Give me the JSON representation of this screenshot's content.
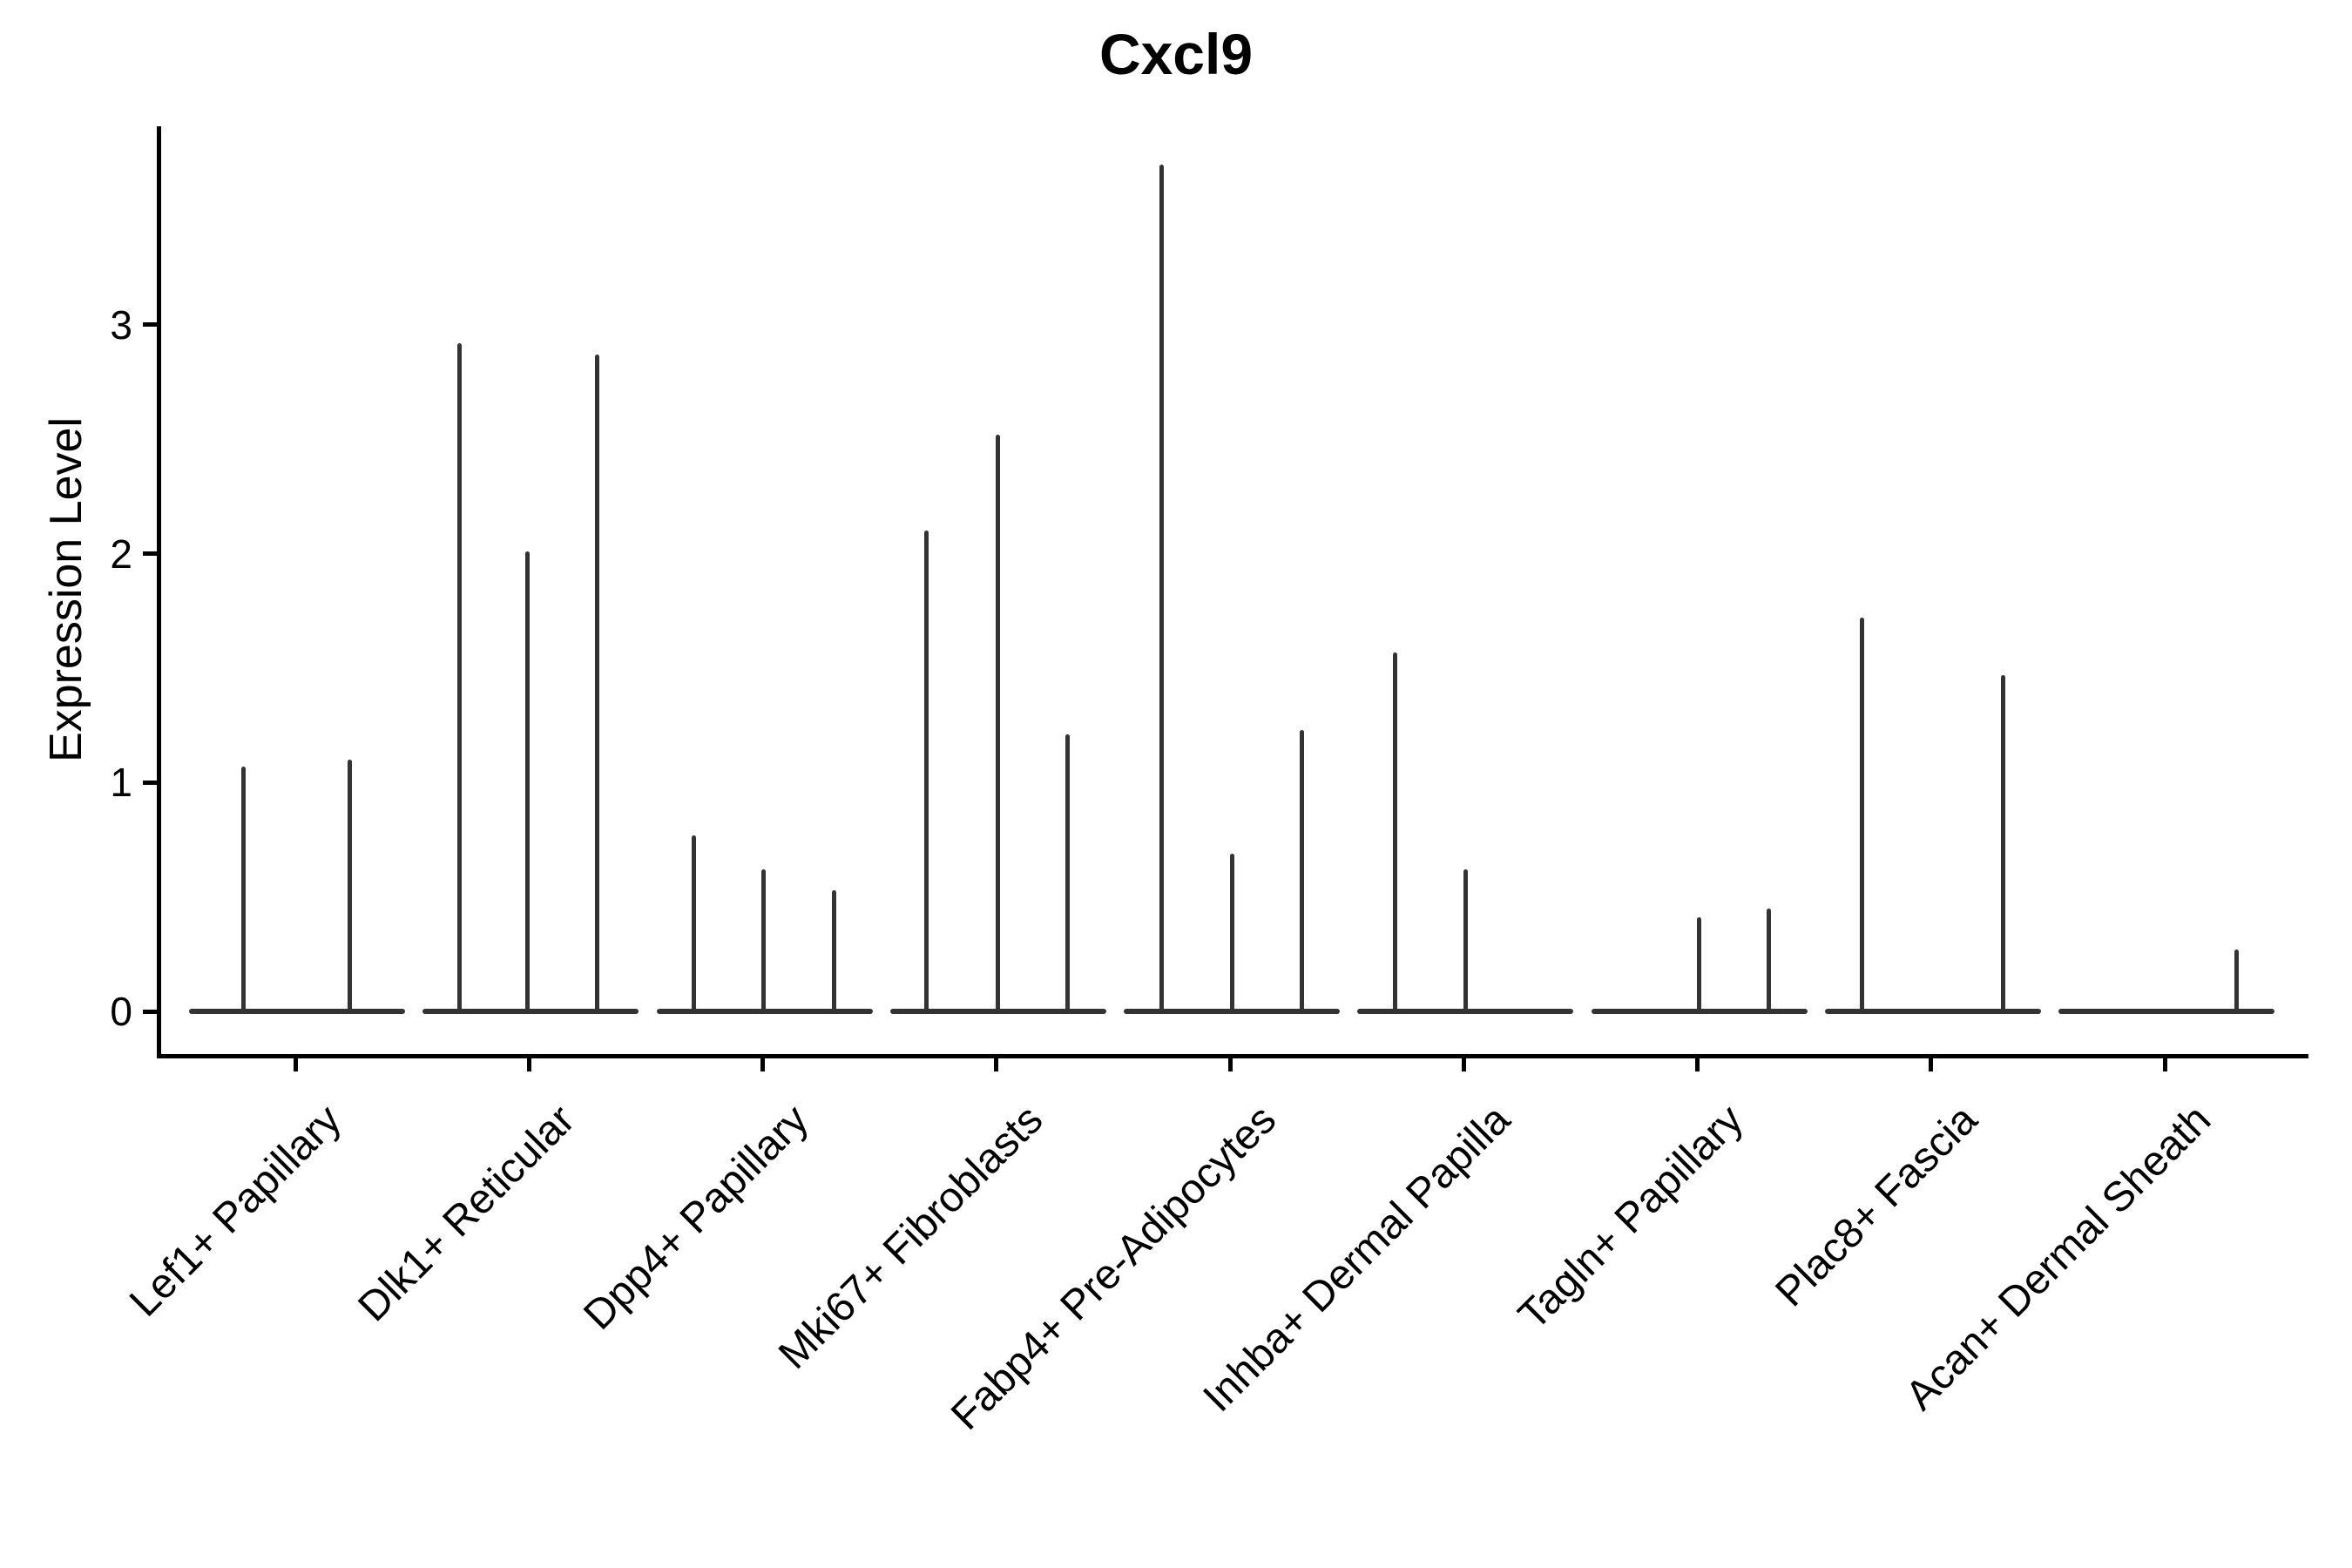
{
  "chart_data": {
    "type": "violin",
    "title": "Cxcl9",
    "ylabel": "Expression Level",
    "xlabel": "",
    "y_ticks": [
      0,
      1,
      2,
      3
    ],
    "ylim": [
      -0.19,
      3.87
    ],
    "grid": false,
    "legend": null,
    "x_tick_angle": 45,
    "style": {
      "violin_color": "#333333",
      "axis_color": "#000000",
      "background": "#ffffff"
    },
    "groups": [
      {
        "label": "Lef1+ Papillary",
        "violins": [
          {
            "dx": -60,
            "peak": 1.07
          },
          {
            "dx": 62,
            "peak": 1.1
          }
        ]
      },
      {
        "label": "Dlk1+ Reticular",
        "violins": [
          {
            "dx": -80,
            "peak": 2.92
          },
          {
            "dx": -2,
            "peak": 2.01
          },
          {
            "dx": 78,
            "peak": 2.87
          }
        ]
      },
      {
        "label": "Dpp4+ Papillary",
        "violins": [
          {
            "dx": -79,
            "peak": 0.77
          },
          {
            "dx": 1,
            "peak": 0.62
          },
          {
            "dx": 82,
            "peak": 0.53
          }
        ]
      },
      {
        "label": "Mki67+ Fibroblasts",
        "violins": [
          {
            "dx": -80,
            "peak": 2.1
          },
          {
            "dx": 2,
            "peak": 2.52
          },
          {
            "dx": 82,
            "peak": 1.21
          }
        ]
      },
      {
        "label": "Fabp4+ Pre-Adipocytes",
        "violins": [
          {
            "dx": -79,
            "peak": 3.7
          },
          {
            "dx": 2,
            "peak": 0.69
          },
          {
            "dx": 82,
            "peak": 1.23
          }
        ]
      },
      {
        "label": "Inhba+ Dermal Papilla",
        "violins": [
          {
            "dx": -79,
            "peak": 1.57
          },
          {
            "dx": 2,
            "peak": 0.62
          },
          {
            "dx": 82,
            "peak": 0
          }
        ]
      },
      {
        "label": "Tagln+ Papillary",
        "violins": [
          {
            "dx": -79,
            "peak": 0
          },
          {
            "dx": 2,
            "peak": 0.41
          },
          {
            "dx": 82,
            "peak": 0.45
          }
        ]
      },
      {
        "label": "Plac8+ Fascia",
        "violins": [
          {
            "dx": -79,
            "peak": 1.72
          },
          {
            "dx": 2,
            "peak": 0
          },
          {
            "dx": 83,
            "peak": 1.47
          }
        ]
      },
      {
        "label": "Acan+ Dermal Sheath",
        "violins": [
          {
            "dx": -79,
            "peak": 0
          },
          {
            "dx": 2,
            "peak": 0
          },
          {
            "dx": 82,
            "peak": 0.27
          }
        ]
      }
    ]
  }
}
